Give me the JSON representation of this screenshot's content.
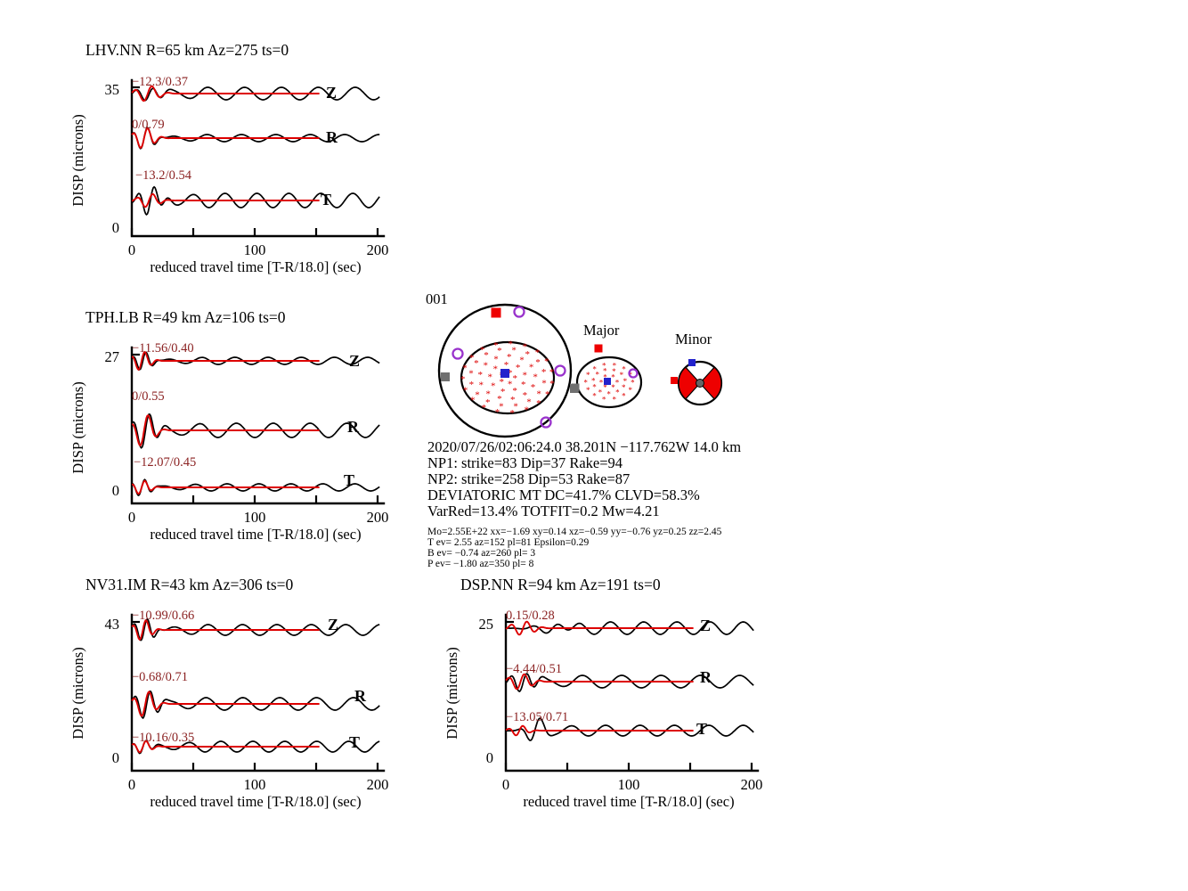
{
  "beachballs": {
    "main_label": "001",
    "major_label": "Major",
    "minor_label": "Minor"
  },
  "event": {
    "origin": "2020/07/26/02:06:24.0 38.201N −117.762W 14.0 km",
    "np1": "NP1: strike=83 Dip=37 Rake=94",
    "np2": "NP2: strike=258 Dip=53 Rake=87",
    "mt": "DEVIATORIC MT DC=41.7% CLVD=58.3%",
    "fit": "VarRed=13.4% TOTFIT=0.2 Mw=4.21",
    "mo": "Mo=2.55E+22 xx=−1.69 xy=0.14 xz=−0.59 yy=−0.76 yz=0.25 zz=2.45",
    "t_axis": "T ev=  2.55 az=152 pl=81 Epsilon=0.29",
    "b_axis": "B ev= −0.74 az=260 pl= 3",
    "p_axis": "P ev= −1.80 az=350 pl= 8"
  },
  "colors": {
    "observed": "#000000",
    "synthetic": "#dd0000",
    "annotation": "#8b2222",
    "stars": "#dd0000",
    "purple": "#9932cc",
    "blue": "#2222cc",
    "gray": "#707070",
    "red": "#ee0000"
  },
  "chart_data": {
    "type": "line",
    "description": "Moment tensor inversion waveform fits: observed (black) vs synthetic (red) displacement seismograms for 4 stations, 3 components each (Z,R,T). Annotations give time-shift/fit per trace.",
    "x_units": "reduced travel time [T-R/18.0] (sec)",
    "x_range": [
      0,
      205
    ],
    "stations": [
      {
        "name": "LHV.NN",
        "title": "LHV.NN R=65 km Az=275 ts=0",
        "distance_km": 65,
        "azimuth": 275,
        "ts": 0,
        "ylabel": "DISP (microns)",
        "ymax": "35",
        "ymin": "0",
        "xticks": [
          "0",
          "100",
          "200"
        ],
        "xlabel": "reduced travel time [T-R/18.0] (sec)",
        "components": [
          {
            "label": "Z",
            "annotation": "−12.3/0.37",
            "time_shift": -12.3,
            "fit": 0.37,
            "obs": {
              "A": 8,
              "t0": 14,
              "T": 14,
              "sig": 9,
              "coda": 7,
              "Tc": 30,
              "ph": 1.2
            },
            "syn": {
              "A": 9,
              "t0": 13,
              "T": 14,
              "sig": 8
            }
          },
          {
            "label": "R",
            "annotation": "0/0.79",
            "time_shift": 0,
            "fit": 0.79,
            "obs": {
              "A": 13,
              "t0": 10,
              "T": 12,
              "sig": 7,
              "coda": 4,
              "Tc": 28,
              "ph": 0.4
            },
            "syn": {
              "A": 12,
              "t0": 10,
              "T": 12,
              "sig": 7
            }
          },
          {
            "label": "T",
            "annotation": "−13.2/0.54",
            "time_shift": -13.2,
            "fit": 0.54,
            "obs": {
              "A": 16,
              "t0": 15,
              "T": 13,
              "sig": 8,
              "coda": 8,
              "Tc": 26,
              "ph": 2.1
            },
            "syn": {
              "A": 8,
              "t0": 14,
              "T": 13,
              "sig": 7
            }
          }
        ]
      },
      {
        "name": "TPH.LB",
        "title": "TPH.LB R=49 km Az=106 ts=0",
        "distance_km": 49,
        "azimuth": 106,
        "ts": 0,
        "ylabel": "DISP (microns)",
        "ymax": "27",
        "ymin": "0",
        "xticks": [
          "0",
          "100",
          "200"
        ],
        "xlabel": "reduced travel time [T-R/18.0] (sec)",
        "components": [
          {
            "label": "Z",
            "annotation": "−11.56/0.40",
            "time_shift": -11.56,
            "fit": 0.4,
            "obs": {
              "A": 11,
              "t0": 9,
              "T": 11,
              "sig": 6,
              "coda": 4,
              "Tc": 27,
              "ph": 0.9
            },
            "syn": {
              "A": 11,
              "t0": 8,
              "T": 11,
              "sig": 6
            }
          },
          {
            "label": "R",
            "annotation": "0/0.55",
            "time_shift": 0,
            "fit": 0.55,
            "obs": {
              "A": 21,
              "t0": 11,
              "T": 14,
              "sig": 8,
              "coda": 8,
              "Tc": 30,
              "ph": 2.6
            },
            "syn": {
              "A": 19,
              "t0": 10,
              "T": 14,
              "sig": 7
            }
          },
          {
            "label": "T",
            "annotation": "−12.07/0.45",
            "time_shift": -12.07,
            "fit": 0.45,
            "obs": {
              "A": 10,
              "t0": 8,
              "T": 11,
              "sig": 6,
              "coda": 4,
              "Tc": 26,
              "ph": 1.7
            },
            "syn": {
              "A": 8,
              "t0": 8,
              "T": 11,
              "sig": 6
            }
          }
        ]
      },
      {
        "name": "NV31.IM",
        "title": "NV31.IM R=43 km Az=306 ts=0",
        "distance_km": 43,
        "azimuth": 306,
        "ts": 0,
        "ylabel": "DISP (microns)",
        "ymax": "43",
        "ymin": "0",
        "xticks": [
          "0",
          "100",
          "200"
        ],
        "xlabel": "reduced travel time [T-R/18.0] (sec)",
        "components": [
          {
            "label": "Z",
            "annotation": "−10.99/0.66",
            "time_shift": -10.99,
            "fit": 0.66,
            "obs": {
              "A": 13,
              "t0": 10,
              "T": 11,
              "sig": 7,
              "coda": 6,
              "Tc": 28,
              "ph": 0.2
            },
            "syn": {
              "A": 12,
              "t0": 9,
              "T": 11,
              "sig": 6
            }
          },
          {
            "label": "R",
            "annotation": "−0.68/0.71",
            "time_shift": -0.68,
            "fit": 0.71,
            "obs": {
              "A": 17,
              "t0": 12,
              "T": 13,
              "sig": 8,
              "coda": 7,
              "Tc": 30,
              "ph": 1.5
            },
            "syn": {
              "A": 15,
              "t0": 11,
              "T": 13,
              "sig": 7
            }
          },
          {
            "label": "T",
            "annotation": "−10.16/0.35",
            "time_shift": -10.16,
            "fit": 0.35,
            "obs": {
              "A": 8,
              "t0": 9,
              "T": 11,
              "sig": 6,
              "coda": 6,
              "Tc": 26,
              "ph": 2.9
            },
            "syn": {
              "A": 7,
              "t0": 9,
              "T": 11,
              "sig": 6
            }
          }
        ]
      },
      {
        "name": "DSP.NN",
        "title": "DSP.NN R=94 km Az=191 ts=0",
        "distance_km": 94,
        "azimuth": 191,
        "ts": 0,
        "ylabel": "DISP (microns)",
        "ymax": "25",
        "ymin": "0",
        "xticks": [
          "0",
          "100",
          "200"
        ],
        "xlabel": "reduced travel time [T-R/18.0] (sec)",
        "components": [
          {
            "label": "Z",
            "annotation": "0.15/0.28",
            "time_shift": 0.15,
            "fit": 0.28,
            "obs": {
              "A": 10,
              "t0": 38,
              "T": 24,
              "sig": 12,
              "coda": 7,
              "Tc": 27,
              "ph": 0.6
            },
            "syn": {
              "A": 8,
              "t0": 14,
              "T": 13,
              "sig": 8
            }
          },
          {
            "label": "R",
            "annotation": "−4.44/0.51",
            "time_shift": -4.44,
            "fit": 0.51,
            "obs": {
              "A": 11,
              "t0": 14,
              "T": 13,
              "sig": 9,
              "coda": 7,
              "Tc": 32,
              "ph": 1.9
            },
            "syn": {
              "A": 9,
              "t0": 12,
              "T": 13,
              "sig": 8
            }
          },
          {
            "label": "T",
            "annotation": "−13.05/0.71",
            "time_shift": -13.05,
            "fit": 0.71,
            "obs": {
              "A": 14,
              "t0": 24,
              "T": 18,
              "sig": 7,
              "coda": 6,
              "Tc": 28,
              "ph": 2.2
            },
            "syn": {
              "A": 6,
              "t0": 11,
              "T": 12,
              "sig": 6
            }
          }
        ]
      }
    ]
  }
}
